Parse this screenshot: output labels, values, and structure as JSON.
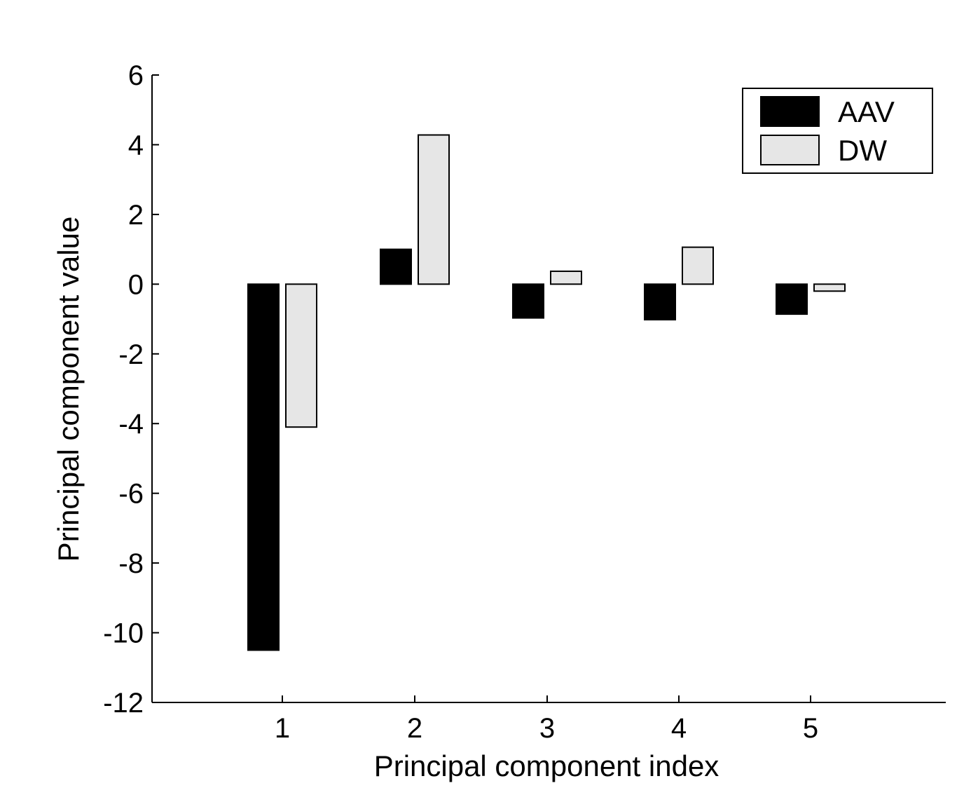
{
  "chart_data": {
    "type": "bar",
    "title": "",
    "xlabel": "Principal component index",
    "ylabel": "Principal component value",
    "categories": [
      "1",
      "2",
      "3",
      "4",
      "5"
    ],
    "series": [
      {
        "name": "AAV",
        "values": [
          -10.5,
          1.0,
          -0.97,
          -1.02,
          -0.86
        ],
        "color": "#000000"
      },
      {
        "name": "DW",
        "values": [
          -4.1,
          4.28,
          0.37,
          1.06,
          -0.2
        ],
        "color": "#e6e6e6"
      }
    ],
    "ylim": [
      -12,
      6
    ],
    "yticks": [
      "6",
      "4",
      "2",
      "0",
      "-2",
      "-4",
      "-6",
      "-8",
      "-10",
      "-12"
    ],
    "grid": false,
    "legend_position": "top-right"
  }
}
